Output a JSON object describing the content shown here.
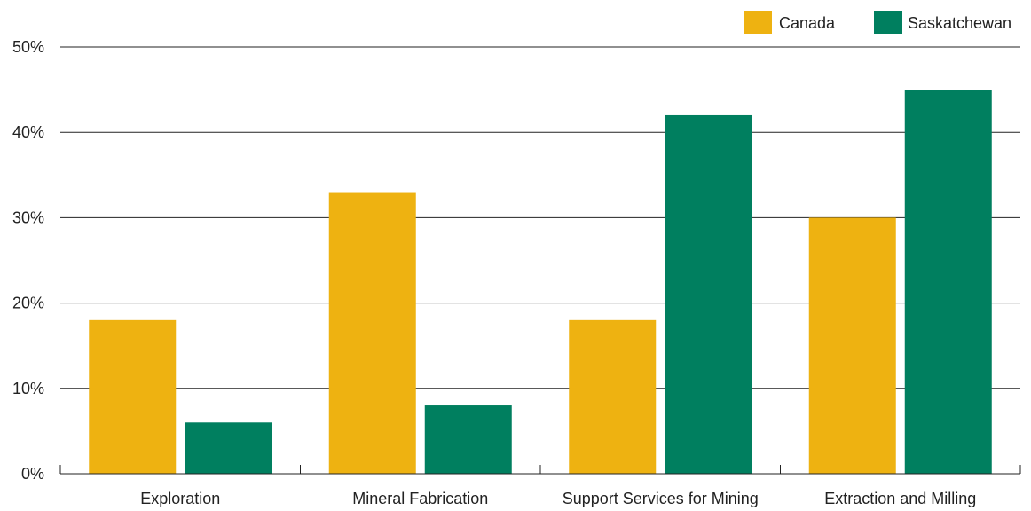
{
  "chart_data": {
    "type": "bar",
    "title": "",
    "xlabel": "",
    "ylabel": "",
    "categories": [
      "Exploration",
      "Mineral Fabrication",
      "Support Services for Mining",
      "Extraction and Milling"
    ],
    "series": [
      {
        "name": "Canada",
        "values": [
          18,
          33,
          18,
          30
        ],
        "color": "#EEB211"
      },
      {
        "name": "Saskatchewan",
        "values": [
          6,
          8,
          42,
          45
        ],
        "color": "#007F5F"
      }
    ],
    "ylim": [
      0,
      50
    ],
    "yticks": [
      0,
      10,
      20,
      30,
      40,
      50
    ],
    "ytick_format": "percent",
    "grid": true,
    "legend_position": "top-right"
  }
}
